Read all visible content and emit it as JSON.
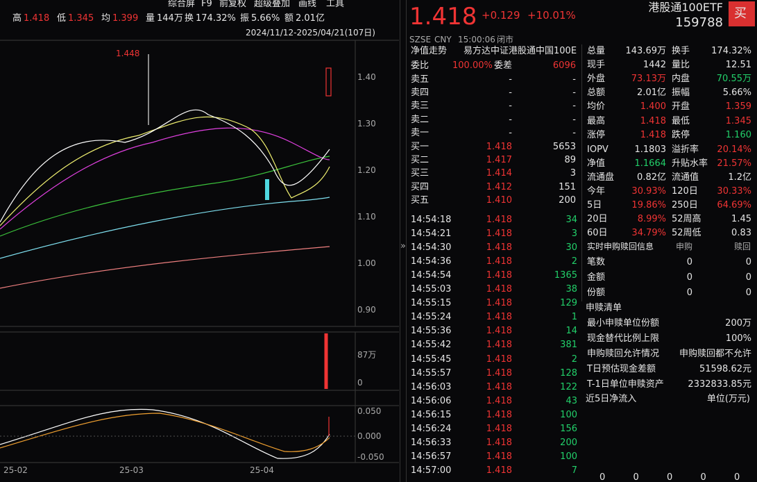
{
  "toolbar": [
    "综合屏",
    "F9",
    "前复权",
    "超级叠加",
    "画线",
    "工具"
  ],
  "stats_bar": [
    [
      "高",
      "1.418"
    ],
    [
      "低",
      "1.345"
    ],
    [
      "均",
      "1.399"
    ],
    [
      "量",
      "144万"
    ],
    [
      "换",
      "174.32%"
    ],
    [
      "振",
      "5.66%"
    ],
    [
      "额",
      "2.01亿"
    ]
  ],
  "range": "2024/11/12-2025/04/21(107日)",
  "chart": {
    "peak": "1.448",
    "price_axis": [
      "1.40",
      "1.30",
      "1.20",
      "1.10",
      "1.00",
      "0.90"
    ],
    "volume_axis": [
      "87万",
      "0"
    ],
    "macd_axis": [
      "0.050",
      "0.000",
      "-0.050"
    ],
    "dates": [
      "25-02",
      "25-03",
      "25-04"
    ]
  },
  "quote": {
    "price": "1.418",
    "change": "+0.129",
    "pct": "+10.01%",
    "name": "港股通100ETF",
    "code": "159788",
    "buy": "买",
    "meta": [
      "SZSE",
      "CNY",
      "15:00:06",
      "闭市"
    ]
  },
  "book": {
    "nav_label": "净值走势",
    "fund": "易方达中证港股通中国100E",
    "ratio_label": "委比",
    "ratio": "100.00%",
    "diff_label": "委差",
    "diff": "6096",
    "asks": [
      [
        "卖五",
        "-",
        "-"
      ],
      [
        "卖四",
        "-",
        "-"
      ],
      [
        "卖三",
        "-",
        "-"
      ],
      [
        "卖二",
        "-",
        "-"
      ],
      [
        "卖一",
        "-",
        "-"
      ]
    ],
    "bids": [
      [
        "买一",
        "1.418",
        "5653"
      ],
      [
        "买二",
        "1.417",
        "89"
      ],
      [
        "买三",
        "1.414",
        "3"
      ],
      [
        "买四",
        "1.412",
        "151"
      ],
      [
        "买五",
        "1.410",
        "200"
      ]
    ]
  },
  "trades": [
    [
      "14:54:18",
      "1.418",
      "34"
    ],
    [
      "14:54:21",
      "1.418",
      "3"
    ],
    [
      "14:54:30",
      "1.418",
      "30"
    ],
    [
      "14:54:36",
      "1.418",
      "2"
    ],
    [
      "14:54:54",
      "1.418",
      "1365"
    ],
    [
      "14:55:03",
      "1.418",
      "38"
    ],
    [
      "14:55:15",
      "1.418",
      "129"
    ],
    [
      "14:55:24",
      "1.418",
      "1"
    ],
    [
      "14:55:36",
      "1.418",
      "14"
    ],
    [
      "14:55:42",
      "1.418",
      "381"
    ],
    [
      "14:55:45",
      "1.418",
      "2"
    ],
    [
      "14:55:57",
      "1.418",
      "128"
    ],
    [
      "14:56:03",
      "1.418",
      "122"
    ],
    [
      "14:56:06",
      "1.418",
      "43"
    ],
    [
      "14:56:15",
      "1.418",
      "100"
    ],
    [
      "14:56:24",
      "1.418",
      "156"
    ],
    [
      "14:56:33",
      "1.418",
      "200"
    ],
    [
      "14:56:57",
      "1.418",
      "100"
    ],
    [
      "14:57:00",
      "1.418",
      "7"
    ]
  ],
  "stats": [
    [
      [
        "总量",
        "143.69万",
        "flat"
      ],
      [
        "换手",
        "174.32%",
        "flat"
      ]
    ],
    [
      [
        "现手",
        "1442",
        "flat"
      ],
      [
        "量比",
        "12.51",
        "flat"
      ]
    ],
    [
      [
        "外盘",
        "73.13万",
        "up"
      ],
      [
        "内盘",
        "70.55万",
        "down"
      ]
    ],
    [
      [
        "总额",
        "2.01亿",
        "flat"
      ],
      [
        "振幅",
        "5.66%",
        "flat"
      ]
    ],
    [
      [
        "均价",
        "1.400",
        "up"
      ],
      [
        "开盘",
        "1.359",
        "up"
      ]
    ],
    [
      [
        "最高",
        "1.418",
        "up"
      ],
      [
        "最低",
        "1.345",
        "up"
      ]
    ],
    [
      [
        "涨停",
        "1.418",
        "up"
      ],
      [
        "跌停",
        "1.160",
        "down"
      ]
    ],
    [
      [
        "IOPV",
        "1.1803",
        "flat"
      ],
      [
        "溢折率",
        "20.14%",
        "up"
      ]
    ],
    [
      [
        "净值",
        "1.1664",
        "down"
      ],
      [
        "升贴水率",
        "21.57%",
        "up"
      ]
    ],
    [
      [
        "流通盘",
        "0.82亿",
        "flat"
      ],
      [
        "流通值",
        "1.2亿",
        "flat"
      ]
    ],
    [
      [
        "今年",
        "30.93%",
        "up"
      ],
      [
        "120日",
        "30.33%",
        "up"
      ]
    ],
    [
      [
        "5日",
        "19.86%",
        "up"
      ],
      [
        "250日",
        "64.69%",
        "up"
      ]
    ],
    [
      [
        "20日",
        "8.99%",
        "up"
      ],
      [
        "52周高",
        "1.45",
        "flat"
      ]
    ],
    [
      [
        "60日",
        "34.79%",
        "up"
      ],
      [
        "52周低",
        "0.83",
        "flat"
      ]
    ]
  ],
  "subscription": {
    "header": [
      "实时申购赎回信息",
      "申购",
      "赎回"
    ],
    "rows": [
      [
        "笔数",
        "0",
        "0"
      ],
      [
        "金额",
        "0",
        "0"
      ],
      [
        "份额",
        "0",
        "0"
      ]
    ]
  },
  "list": {
    "title": "申赎清单",
    "rows": [
      [
        "最小申赎单位份额",
        "200万"
      ],
      [
        "现金替代比例上限",
        "100%"
      ],
      [
        "申购赎回允许情况",
        "申购赎回都不允许"
      ],
      [
        "T日预估现金差额",
        "51598.62元"
      ],
      [
        "T-1日单位申赎资产",
        "2332833.85元"
      ]
    ]
  },
  "flow": {
    "title": "近5日净流入",
    "unit": "单位(万元)",
    "values": [
      "0",
      "0",
      "0",
      "0",
      "0"
    ]
  }
}
